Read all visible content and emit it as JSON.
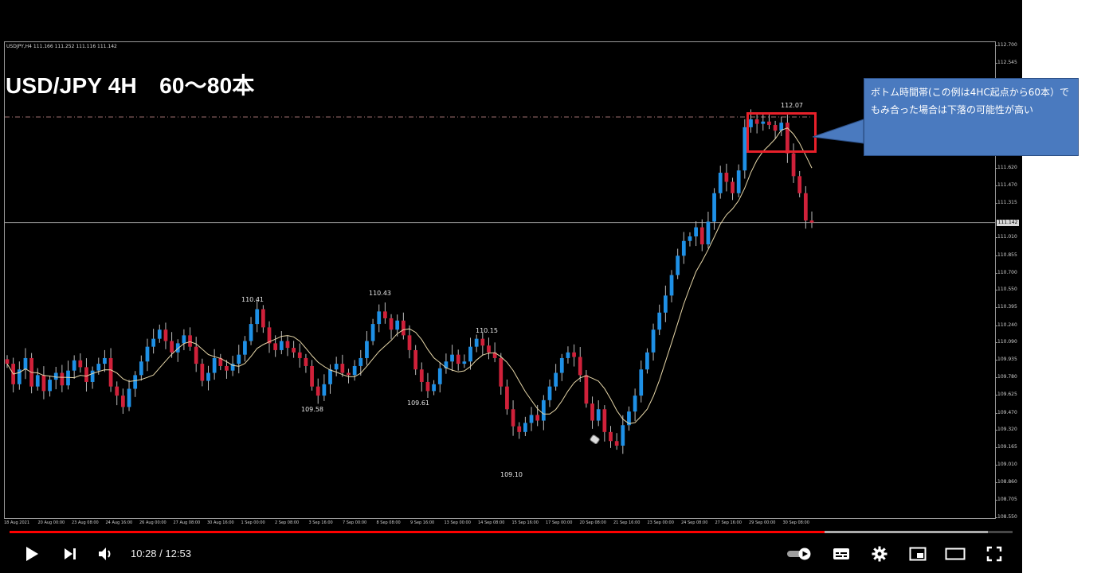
{
  "chart": {
    "symbol_line": "USDJPY,H4  111.166 111.252 111.116 111.142",
    "title": "USD/JPY 4H　60～80本",
    "current_price": "111.142",
    "highlight_price": 112.07,
    "current_price_value": 111.142,
    "price_ticks": [
      "112.700",
      "112.545",
      "111.620",
      "111.470",
      "111.315",
      "111.010",
      "110.855",
      "110.700",
      "110.550",
      "110.395",
      "110.240",
      "110.090",
      "109.935",
      "109.780",
      "109.625",
      "109.470",
      "109.320",
      "109.165",
      "109.010",
      "108.860",
      "108.705",
      "108.550"
    ],
    "time_ticks": [
      "18 Aug 2021",
      "20 Aug 00:00",
      "23 Aug 08:00",
      "24 Aug 16:00",
      "26 Aug 00:00",
      "27 Aug 08:00",
      "30 Aug 16:00",
      "1 Sep 00:00",
      "2 Sep 08:00",
      "3 Sep 16:00",
      "7 Sep 00:00",
      "8 Sep 08:00",
      "9 Sep 16:00",
      "13 Sep 00:00",
      "14 Sep 08:00",
      "15 Sep 16:00",
      "17 Sep 00:00",
      "20 Sep 08:00",
      "21 Sep 16:00",
      "23 Sep 00:00",
      "24 Sep 08:00",
      "27 Sep 16:00",
      "29 Sep 00:00",
      "30 Sep 08:00"
    ],
    "extreme_labels": [
      "110.41",
      "110.43",
      "110.15",
      "109.58",
      "109.61",
      "109.10",
      "112.07"
    ],
    "colors": {
      "bull": "#1e90e6",
      "bear": "#d0213a",
      "ma": "#e6d6a8",
      "grid": "#9a9a9a",
      "dashed": "#a07070"
    },
    "candle_closes": [
      109.9,
      109.72,
      109.85,
      109.95,
      109.7,
      109.8,
      109.66,
      109.76,
      109.82,
      109.71,
      109.84,
      109.93,
      109.87,
      109.74,
      109.84,
      109.9,
      109.95,
      109.7,
      109.62,
      109.52,
      109.68,
      109.8,
      109.92,
      110.05,
      110.12,
      110.2,
      110.1,
      110.0,
      110.08,
      110.15,
      110.05,
      109.9,
      109.75,
      109.82,
      109.95,
      109.88,
      109.84,
      109.9,
      109.98,
      110.1,
      110.25,
      110.38,
      110.22,
      110.08,
      110.02,
      110.1,
      110.04,
      110.0,
      109.95,
      109.88,
      109.7,
      109.62,
      109.72,
      109.85,
      109.9,
      109.82,
      109.8,
      109.88,
      109.95,
      110.1,
      110.25,
      110.36,
      110.3,
      110.2,
      110.28,
      110.15,
      110.02,
      109.85,
      109.74,
      109.66,
      109.72,
      109.86,
      109.92,
      109.98,
      109.9,
      109.92,
      110.05,
      110.12,
      110.06,
      110.0,
      109.95,
      109.7,
      109.5,
      109.35,
      109.3,
      109.38,
      109.45,
      109.4,
      109.58,
      109.7,
      109.82,
      109.95,
      110.0,
      109.96,
      109.8,
      109.55,
      109.4,
      109.5,
      109.3,
      109.22,
      109.18,
      109.36,
      109.48,
      109.62,
      109.85,
      110.0,
      110.2,
      110.35,
      110.5,
      110.68,
      110.85,
      110.98,
      111.02,
      111.1,
      110.95,
      111.15,
      111.4,
      111.58,
      111.5,
      111.4,
      111.6,
      111.98,
      112.05,
      112.01,
      112.03,
      112.0,
      111.95,
      112.02,
      111.75,
      111.55,
      111.4,
      111.16,
      111.142
    ],
    "candle_highs_extra": 0.06,
    "price_min": 108.55,
    "price_max": 112.7
  },
  "callout": {
    "text_line1": "ボトム時間帯(この例は4HC起点から60本）で",
    "text_line2": "もみ合った場合は下落の可能性が高い"
  },
  "player": {
    "current_time": "10:28",
    "separator": " / ",
    "duration": "12:53",
    "progress_fraction": 0.8125,
    "loaded_fraction": 0.975,
    "controls": {
      "play": "play-icon",
      "next": "next-icon",
      "volume": "volume-icon",
      "autoplay": "autoplay-toggle-icon",
      "subtitles": "subtitles-icon",
      "settings": "gear-icon",
      "miniplayer": "miniplayer-icon",
      "theater": "theater-icon",
      "fullscreen": "fullscreen-icon"
    }
  }
}
